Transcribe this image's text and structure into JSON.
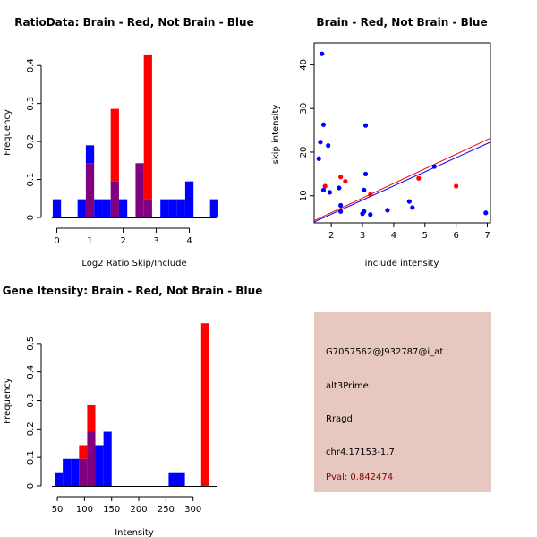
{
  "colors": {
    "red": "#ff0000",
    "blue": "#0000ff",
    "overlap": "#800080",
    "info_bg": "#e6c8c0",
    "pval_text": "#8b0000"
  },
  "chart_data": [
    {
      "id": "ratio_hist",
      "type": "bar",
      "title": "RatioData: Brain - Red, Not Brain - Blue",
      "xlabel": "Log2 Ratio Skip/Include",
      "ylabel": "Frequency",
      "xlim": [
        -0.15,
        4.85
      ],
      "ylim": [
        0,
        0.45
      ],
      "xticks": [
        0,
        1,
        2,
        3,
        4
      ],
      "yticks": [
        0,
        0.1,
        0.2,
        0.3,
        0.4
      ],
      "bin_width": 0.25,
      "bin_starts": [
        -0.125,
        0.125,
        0.375,
        0.625,
        0.875,
        1.125,
        1.375,
        1.625,
        1.875,
        2.125,
        2.375,
        2.625,
        2.875,
        3.125,
        3.375,
        3.625,
        3.875,
        4.125,
        4.375,
        4.625
      ],
      "series": [
        {
          "name": "Brain",
          "color": "red",
          "values": [
            0,
            0,
            0,
            0,
            0.143,
            0,
            0,
            0.286,
            0,
            0,
            0.143,
            0.429,
            0,
            0,
            0,
            0,
            0,
            0,
            0,
            0
          ]
        },
        {
          "name": "Not Brain",
          "color": "blue",
          "values": [
            0.048,
            0,
            0,
            0.048,
            0.19,
            0.048,
            0.048,
            0.095,
            0.048,
            0,
            0.143,
            0.048,
            0,
            0.048,
            0.048,
            0.048,
            0.095,
            0,
            0,
            0.048
          ]
        }
      ]
    },
    {
      "id": "scatter",
      "type": "scatter",
      "title": "Brain - Red, Not Brain - Blue",
      "xlabel": "include intensity",
      "ylabel": "skip intensity",
      "xlim": [
        1.45,
        7.1
      ],
      "ylim": [
        3.8,
        45
      ],
      "xticks": [
        2,
        3,
        4,
        5,
        6,
        7
      ],
      "yticks": [
        10,
        20,
        30,
        40
      ],
      "series": [
        {
          "name": "Brain",
          "color": "red",
          "points": [
            [
              1.8,
              12.2
            ],
            [
              2.3,
              14.3
            ],
            [
              2.45,
              13.3
            ],
            [
              3.25,
              10.3
            ],
            [
              4.8,
              14.0
            ],
            [
              6.0,
              12.2
            ]
          ]
        },
        {
          "name": "Not Brain",
          "color": "blue",
          "points": [
            [
              1.6,
              18.5
            ],
            [
              1.65,
              22.3
            ],
            [
              1.7,
              42.5
            ],
            [
              1.75,
              26.3
            ],
            [
              1.75,
              11.3
            ],
            [
              1.9,
              21.5
            ],
            [
              1.95,
              10.8
            ],
            [
              2.25,
              11.8
            ],
            [
              2.3,
              7.8
            ],
            [
              2.3,
              6.4
            ],
            [
              3.0,
              5.9
            ],
            [
              3.05,
              6.4
            ],
            [
              3.05,
              11.3
            ],
            [
              3.1,
              26.1
            ],
            [
              3.1,
              15.0
            ],
            [
              3.25,
              5.7
            ],
            [
              3.8,
              6.7
            ],
            [
              4.5,
              8.7
            ],
            [
              4.6,
              7.3
            ],
            [
              5.3,
              16.7
            ],
            [
              6.95,
              6.1
            ]
          ]
        }
      ],
      "fit_lines": [
        {
          "name": "Brain fit",
          "color": "red",
          "p1": [
            1.45,
            4.3
          ],
          "p2": [
            7.1,
            23.2
          ]
        },
        {
          "name": "Not Brain fit",
          "color": "blue",
          "p1": [
            1.45,
            4.0
          ],
          "p2": [
            7.1,
            22.3
          ]
        }
      ]
    },
    {
      "id": "intensity_hist",
      "type": "bar",
      "title": "Gene Itensity: Brain - Red, Not Brain - Blue",
      "xlabel": "Intensity",
      "ylabel": "Frequency",
      "xlim": [
        40,
        345
      ],
      "ylim": [
        0,
        0.6
      ],
      "xticks": [
        50,
        100,
        150,
        200,
        250,
        300
      ],
      "yticks": [
        0,
        0.1,
        0.2,
        0.3,
        0.4,
        0.5
      ],
      "bin_width": 15,
      "bin_starts": [
        45,
        60,
        75,
        90,
        105,
        120,
        135,
        150,
        165,
        180,
        195,
        210,
        225,
        240,
        255,
        270,
        285,
        300,
        315
      ],
      "series": [
        {
          "name": "Brain",
          "color": "red",
          "values": [
            0,
            0,
            0,
            0.143,
            0.286,
            0,
            0,
            0,
            0,
            0,
            0,
            0,
            0,
            0,
            0,
            0,
            0,
            0,
            0.571
          ]
        },
        {
          "name": "Not Brain",
          "color": "blue",
          "values": [
            0.048,
            0.095,
            0.095,
            0.095,
            0.19,
            0.143,
            0.19,
            0,
            0,
            0,
            0,
            0,
            0,
            0,
            0.048,
            0.048,
            0,
            0,
            0
          ]
        }
      ]
    }
  ],
  "info_box": {
    "probe_id": "G7057562@J932787@i_at",
    "event_type": "alt3Prime",
    "gene": "Rragd",
    "location": "chr4.17153-1.7",
    "pval": "Pval: 0.842474"
  }
}
